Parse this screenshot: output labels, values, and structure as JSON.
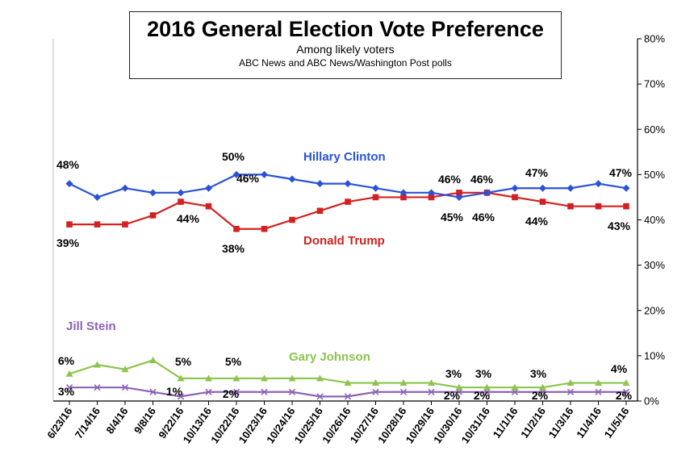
{
  "chart_data": {
    "type": "line",
    "title": "2016 General Election Vote Preference",
    "subtitle": "Among likely voters",
    "source": "ABC News and ABC News/Washington  Post polls",
    "categories": [
      "6/23/16",
      "7/14/16",
      "8/4/16",
      "9/8/16",
      "9/22/16",
      "10/13/16",
      "10/22/16",
      "10/23/16",
      "10/24/16",
      "10/25/16",
      "10/26/16",
      "10/27/16",
      "10/28/16",
      "10/29/16",
      "10/30/16",
      "10/31/16",
      "11/1/16",
      "11/2/16",
      "11/3/16",
      "11/4/16",
      "11/5/16"
    ],
    "ylim": [
      0,
      80
    ],
    "yticks": [
      "0%",
      "10%",
      "20%",
      "30%",
      "40%",
      "50%",
      "60%",
      "70%",
      "80%"
    ],
    "y_axis_position": "right",
    "series": [
      {
        "name": "Hillary Clinton",
        "color": "#2a52d6",
        "marker": "diamond",
        "values": [
          48,
          45,
          47,
          46,
          46,
          47,
          50,
          50,
          49,
          48,
          48,
          47,
          46,
          46,
          45,
          46,
          47,
          47,
          47,
          48,
          47
        ]
      },
      {
        "name": "Donald Trump",
        "color": "#d42020",
        "marker": "square",
        "values": [
          39,
          39,
          39,
          41,
          44,
          43,
          38,
          38,
          40,
          42,
          44,
          45,
          45,
          45,
          46,
          46,
          45,
          44,
          43,
          43,
          43
        ]
      },
      {
        "name": "Gary Johnson",
        "color": "#8dc44d",
        "marker": "triangle",
        "values": [
          6,
          8,
          7,
          9,
          5,
          5,
          5,
          5,
          5,
          5,
          4,
          4,
          4,
          4,
          3,
          3,
          3,
          3,
          4,
          4,
          4
        ]
      },
      {
        "name": "Jill Stein",
        "color": "#8c63b5",
        "marker": "x",
        "values": [
          3,
          3,
          3,
          2,
          1,
          2,
          2,
          2,
          2,
          1,
          1,
          2,
          2,
          2,
          2,
          2,
          2,
          2,
          2,
          2,
          2
        ]
      }
    ],
    "data_labels": [
      {
        "text": "48%",
        "color": "#000"
      },
      {
        "text": "46%",
        "color": "#000"
      },
      {
        "text": "50%",
        "color": "#000"
      },
      {
        "text": "46%",
        "color": "#000"
      },
      {
        "text": "46%",
        "color": "#000"
      },
      {
        "text": "47%",
        "color": "#000"
      },
      {
        "text": "47%",
        "color": "#000"
      },
      {
        "text": "39%",
        "color": "#000"
      },
      {
        "text": "44%",
        "color": "#000"
      },
      {
        "text": "38%",
        "color": "#000"
      },
      {
        "text": "45%",
        "color": "#000"
      },
      {
        "text": "46%",
        "color": "#000"
      },
      {
        "text": "44%",
        "color": "#000"
      },
      {
        "text": "43%",
        "color": "#000"
      },
      {
        "text": "6%",
        "color": "#000"
      },
      {
        "text": "5%",
        "color": "#000"
      },
      {
        "text": "5%",
        "color": "#000"
      },
      {
        "text": "3%",
        "color": "#000"
      },
      {
        "text": "3%",
        "color": "#000"
      },
      {
        "text": "3%",
        "color": "#000"
      },
      {
        "text": "4%",
        "color": "#000"
      },
      {
        "text": "3%",
        "color": "#000"
      },
      {
        "text": "1%",
        "color": "#000"
      },
      {
        "text": "2%",
        "color": "#000"
      },
      {
        "text": "2%",
        "color": "#000"
      },
      {
        "text": "2%",
        "color": "#000"
      },
      {
        "text": "2%",
        "color": "#000"
      },
      {
        "text": "2%",
        "color": "#000"
      }
    ],
    "series_labels": [
      {
        "text": "Hillary Clinton",
        "color": "#2a52d6"
      },
      {
        "text": "Donald Trump",
        "color": "#d42020"
      },
      {
        "text": "Gary Johnson",
        "color": "#8dc44d"
      },
      {
        "text": "Jill Stein",
        "color": "#8c63b5"
      }
    ],
    "grid": false
  }
}
